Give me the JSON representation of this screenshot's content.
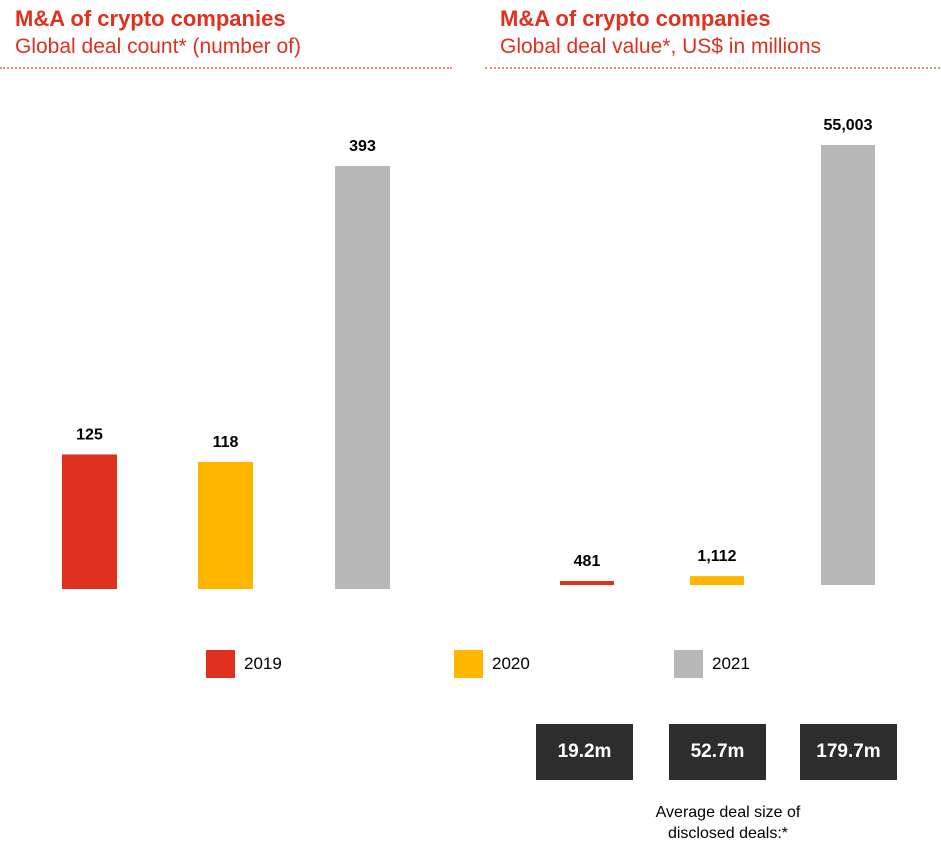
{
  "colors": {
    "title": "#e0301e",
    "y2019": "#e0301e",
    "y2020": "#ffb600",
    "y2021": "#b8b8b8",
    "box": "#2d2d2d"
  },
  "chart_data": [
    {
      "type": "bar",
      "title": "M&A of crypto companies",
      "subtitle": "Global deal count* (number of)",
      "categories": [
        "2019",
        "2020",
        "2021"
      ],
      "values": [
        125,
        118,
        393
      ],
      "value_labels": [
        "125",
        "118",
        "393"
      ],
      "ylim": [
        0,
        393
      ]
    },
    {
      "type": "bar",
      "title": "M&A of crypto companies",
      "subtitle": "Global deal value*, US$ in millions",
      "categories": [
        "2019",
        "2020",
        "2021"
      ],
      "values": [
        481,
        1112,
        55003
      ],
      "value_labels": [
        "481",
        "1,112",
        "55,003"
      ],
      "ylim": [
        0,
        55003
      ]
    }
  ],
  "legend": [
    {
      "label": "2019",
      "color": "#e0301e"
    },
    {
      "label": "2020",
      "color": "#ffb600"
    },
    {
      "label": "2021",
      "color": "#b8b8b8"
    }
  ],
  "average_deal_size": {
    "values": [
      "19.2m",
      "52.7m",
      "179.7m"
    ],
    "caption_line1": "Average deal size of",
    "caption_line2": "disclosed deals:*"
  }
}
